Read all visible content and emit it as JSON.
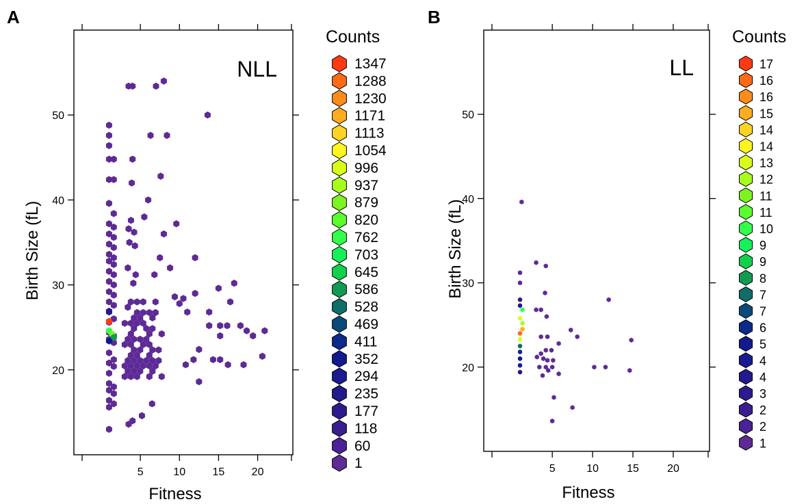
{
  "chart_data": [
    {
      "panel": "A",
      "type": "scatter",
      "subtype": "hexbin",
      "title": "NLL",
      "xlabel": "Fitness",
      "ylabel": "Birth Size (fL)",
      "xlim": [
        -3.5,
        24.5
      ],
      "ylim": [
        10,
        60
      ],
      "xticks": [
        5,
        10,
        15,
        20
      ],
      "yticks": [
        20,
        30,
        40,
        50
      ],
      "legend": {
        "title": "Counts",
        "labels": [
          "1347",
          "1288",
          "1230",
          "1171",
          "1113",
          "1054",
          "996",
          "937",
          "879",
          "820",
          "762",
          "703",
          "645",
          "586",
          "528",
          "469",
          "411",
          "352",
          "294",
          "235",
          "177",
          "118",
          "60",
          "1"
        ],
        "colors": [
          "#ff3a12",
          "#ff6a14",
          "#ff8c1a",
          "#ffad1f",
          "#ffd324",
          "#fff51f",
          "#d8ff1a",
          "#a8ff1c",
          "#7cf41f",
          "#5aff2c",
          "#33ff4a",
          "#17f05a",
          "#13d04a",
          "#139a52",
          "#0f6e68",
          "#0a4a7a",
          "#0b2a8a",
          "#111a8e",
          "#1a1a92",
          "#221a8c",
          "#2e1a8c",
          "#3a1e90",
          "#4a2196",
          "#5d2a96"
        ],
        "placement": "right"
      },
      "background_color": "#5d2a96",
      "points": [
        [
          1,
          13.0
        ],
        [
          1,
          15.6
        ],
        [
          1,
          16.4
        ],
        [
          1,
          17.6
        ],
        [
          1,
          18.4
        ],
        [
          1,
          19.6
        ],
        [
          1,
          20.8
        ],
        [
          1,
          22.0
        ],
        [
          1,
          23.6
        ],
        [
          1,
          24.4
        ],
        [
          1,
          25.6
        ],
        [
          1,
          26.8
        ],
        [
          1,
          28.0
        ],
        [
          1,
          29.2
        ],
        [
          1,
          30.4
        ],
        [
          1,
          31.6
        ],
        [
          1,
          32.8
        ],
        [
          1,
          33.6
        ],
        [
          1,
          34.8
        ],
        [
          1,
          36.0
        ],
        [
          1,
          37.2
        ],
        [
          1,
          39.6
        ],
        [
          1,
          42.4
        ],
        [
          1,
          44.8
        ],
        [
          1,
          46.4
        ],
        [
          1,
          47.6
        ],
        [
          1,
          48.8
        ],
        [
          1.6,
          16.0
        ],
        [
          1.6,
          17.2
        ],
        [
          1.6,
          18.0
        ],
        [
          1.6,
          20.4
        ],
        [
          1.6,
          21.2
        ],
        [
          1.6,
          23.2
        ],
        [
          1.6,
          24.0
        ],
        [
          1.6,
          26.0
        ],
        [
          1.6,
          27.6
        ],
        [
          1.6,
          28.8
        ],
        [
          1.6,
          30.0
        ],
        [
          1.6,
          31.2
        ],
        [
          1.6,
          32.4
        ],
        [
          1.6,
          33.2
        ],
        [
          1.6,
          34.4
        ],
        [
          1.6,
          35.6
        ],
        [
          1.6,
          36.8
        ],
        [
          1.6,
          38.4
        ],
        [
          1.6,
          42.4
        ],
        [
          1.6,
          44.8
        ],
        [
          3.5,
          13.6
        ],
        [
          4,
          14.0
        ],
        [
          3.5,
          53.4
        ],
        [
          4,
          53.4
        ],
        [
          7,
          53.4
        ],
        [
          8,
          54.0
        ],
        [
          13.6,
          50.0
        ],
        [
          4,
          44.8
        ],
        [
          6.3,
          47.6
        ],
        [
          8.4,
          47.6
        ],
        [
          3.9,
          42.0
        ],
        [
          7.6,
          42.8
        ],
        [
          6,
          40.0
        ],
        [
          5.5,
          38.0
        ],
        [
          3.8,
          37.6
        ],
        [
          3.5,
          36.6
        ],
        [
          4.2,
          36.2
        ],
        [
          8,
          36.0
        ],
        [
          9.6,
          37.2
        ],
        [
          3.6,
          35.0
        ],
        [
          4.3,
          34.6
        ],
        [
          7.5,
          33.2
        ],
        [
          12,
          33.2
        ],
        [
          3.4,
          32.0
        ],
        [
          8.8,
          32.0
        ],
        [
          4.4,
          31.2
        ],
        [
          6.8,
          31.2
        ],
        [
          4.1,
          30.2
        ],
        [
          17,
          30.2
        ],
        [
          11,
          26.8
        ],
        [
          13.8,
          26.8
        ],
        [
          13.8,
          25.2
        ],
        [
          15.2,
          25.2
        ],
        [
          16.1,
          25.2
        ],
        [
          17.8,
          25.2
        ],
        [
          18.6,
          24.6
        ],
        [
          19.4,
          24.0
        ],
        [
          20.9,
          24.6
        ],
        [
          15.2,
          24.0
        ],
        [
          12.5,
          22.4
        ],
        [
          11.8,
          21.2
        ],
        [
          14.3,
          21.2
        ],
        [
          15.2,
          21.2
        ],
        [
          20.6,
          21.6
        ],
        [
          10.8,
          20.6
        ],
        [
          16.2,
          20.6
        ],
        [
          18.2,
          20.6
        ],
        [
          12.5,
          18.6
        ],
        [
          6.5,
          16.0
        ],
        [
          5.2,
          14.6
        ],
        [
          9.4,
          28.6
        ],
        [
          10.5,
          28.4
        ],
        [
          12,
          29.0
        ],
        [
          16.5,
          28.0
        ],
        [
          10,
          27.8
        ],
        [
          15,
          29.6
        ]
      ],
      "hot_points": [
        {
          "x": 1.0,
          "y": 25.7,
          "color": "#ff3a12"
        },
        {
          "x": 1.0,
          "y": 24.6,
          "color": "#33ff4a"
        },
        {
          "x": 1.4,
          "y": 24.2,
          "color": "#7cf41f"
        },
        {
          "x": 1.6,
          "y": 23.8,
          "color": "#139a52"
        },
        {
          "x": 1.0,
          "y": 23.4,
          "color": "#111a8e"
        },
        {
          "x": 1.0,
          "y": 26.9,
          "color": "#221a8c"
        }
      ],
      "core_region": {
        "x": [
          3.0,
          8.0
        ],
        "y": [
          19.0,
          28.0
        ]
      }
    },
    {
      "panel": "B",
      "type": "scatter",
      "subtype": "hexbin",
      "title": "LL",
      "xlabel": "Fitness",
      "ylabel": "Birth Size (fL)",
      "xlim": [
        -3.5,
        24.5
      ],
      "ylim": [
        10,
        60
      ],
      "xticks": [
        5,
        10,
        15,
        20
      ],
      "yticks": [
        20,
        30,
        40,
        50
      ],
      "legend": {
        "title": "Counts",
        "labels": [
          "17",
          "16",
          "16",
          "15",
          "14",
          "14",
          "13",
          "12",
          "11",
          "11",
          "10",
          "9",
          "9",
          "8",
          "7",
          "7",
          "6",
          "5",
          "4",
          "4",
          "3",
          "2",
          "2",
          "1"
        ],
        "colors": [
          "#ff3a12",
          "#ff6a14",
          "#ff8c1a",
          "#ffad1f",
          "#ffd324",
          "#fff51f",
          "#d8ff1a",
          "#a8ff1c",
          "#7cf41f",
          "#5aff2c",
          "#33ff4a",
          "#17f05a",
          "#13d04a",
          "#139a52",
          "#0f6e68",
          "#0a4a7a",
          "#0b2a8a",
          "#111a8e",
          "#1a1a92",
          "#221a8c",
          "#2e1a8c",
          "#3a1e90",
          "#4a2196",
          "#5d2a96"
        ],
        "placement": "right"
      },
      "points": [
        {
          "x": 1.2,
          "y": 39.6,
          "color": "#5d2a96"
        },
        {
          "x": 1.0,
          "y": 31.2,
          "color": "#5d2a96"
        },
        {
          "x": 1.0,
          "y": 30.0,
          "color": "#5d2a96"
        },
        {
          "x": 1.0,
          "y": 28.0,
          "color": "#2e1a8c"
        },
        {
          "x": 1.0,
          "y": 27.3,
          "color": "#1a1a92"
        },
        {
          "x": 1.3,
          "y": 26.8,
          "color": "#33ff4a"
        },
        {
          "x": 1.0,
          "y": 25.8,
          "color": "#d8ff1a"
        },
        {
          "x": 1.3,
          "y": 25.2,
          "color": "#a8ff1c"
        },
        {
          "x": 1.3,
          "y": 24.5,
          "color": "#ffad1f"
        },
        {
          "x": 1.0,
          "y": 24.0,
          "color": "#ff6a14"
        },
        {
          "x": 1.0,
          "y": 23.3,
          "color": "#d8ff1a"
        },
        {
          "x": 1.0,
          "y": 22.5,
          "color": "#0f6e68"
        },
        {
          "x": 1.0,
          "y": 21.8,
          "color": "#0b2a8a"
        },
        {
          "x": 1.0,
          "y": 21.0,
          "color": "#111a8e"
        },
        {
          "x": 1.0,
          "y": 20.2,
          "color": "#1a1a92"
        },
        {
          "x": 1.0,
          "y": 19.4,
          "color": "#221a8c"
        },
        {
          "x": 3.0,
          "y": 32.4,
          "color": "#5d2a96"
        },
        {
          "x": 4.2,
          "y": 32.0,
          "color": "#5d2a96"
        },
        {
          "x": 4.1,
          "y": 28.8,
          "color": "#5d2a96"
        },
        {
          "x": 3.0,
          "y": 26.8,
          "color": "#5d2a96"
        },
        {
          "x": 3.6,
          "y": 26.8,
          "color": "#5d2a96"
        },
        {
          "x": 4.3,
          "y": 26.0,
          "color": "#5d2a96"
        },
        {
          "x": 3.6,
          "y": 23.6,
          "color": "#5d2a96"
        },
        {
          "x": 4.4,
          "y": 23.6,
          "color": "#5d2a96"
        },
        {
          "x": 4.2,
          "y": 22.0,
          "color": "#5d2a96"
        },
        {
          "x": 4.9,
          "y": 22.0,
          "color": "#5d2a96"
        },
        {
          "x": 3.6,
          "y": 21.6,
          "color": "#5d2a96"
        },
        {
          "x": 3.9,
          "y": 21.0,
          "color": "#5d2a96"
        },
        {
          "x": 3.1,
          "y": 21.2,
          "color": "#5d2a96"
        },
        {
          "x": 4.4,
          "y": 20.8,
          "color": "#5d2a96"
        },
        {
          "x": 5.1,
          "y": 20.8,
          "color": "#5d2a96"
        },
        {
          "x": 3.4,
          "y": 20.0,
          "color": "#5d2a96"
        },
        {
          "x": 4.2,
          "y": 20.0,
          "color": "#5d2a96"
        },
        {
          "x": 5.0,
          "y": 20.0,
          "color": "#5d2a96"
        },
        {
          "x": 3.8,
          "y": 19.0,
          "color": "#5d2a96"
        },
        {
          "x": 4.5,
          "y": 19.6,
          "color": "#5d2a96"
        },
        {
          "x": 5.8,
          "y": 19.2,
          "color": "#5d2a96"
        },
        {
          "x": 5.8,
          "y": 22.8,
          "color": "#5d2a96"
        },
        {
          "x": 7.3,
          "y": 24.4,
          "color": "#5d2a96"
        },
        {
          "x": 8.1,
          "y": 23.6,
          "color": "#5d2a96"
        },
        {
          "x": 5.2,
          "y": 16.4,
          "color": "#5d2a96"
        },
        {
          "x": 7.5,
          "y": 15.2,
          "color": "#5d2a96"
        },
        {
          "x": 5.0,
          "y": 13.6,
          "color": "#5d2a96"
        },
        {
          "x": 10.2,
          "y": 20.0,
          "color": "#5d2a96"
        },
        {
          "x": 11.6,
          "y": 20.0,
          "color": "#5d2a96"
        },
        {
          "x": 12.0,
          "y": 28.0,
          "color": "#5d2a96"
        },
        {
          "x": 14.8,
          "y": 23.2,
          "color": "#5d2a96"
        },
        {
          "x": 14.6,
          "y": 19.6,
          "color": "#5d2a96"
        }
      ]
    }
  ],
  "labels": {
    "panel_a": "A",
    "panel_b": "B"
  }
}
